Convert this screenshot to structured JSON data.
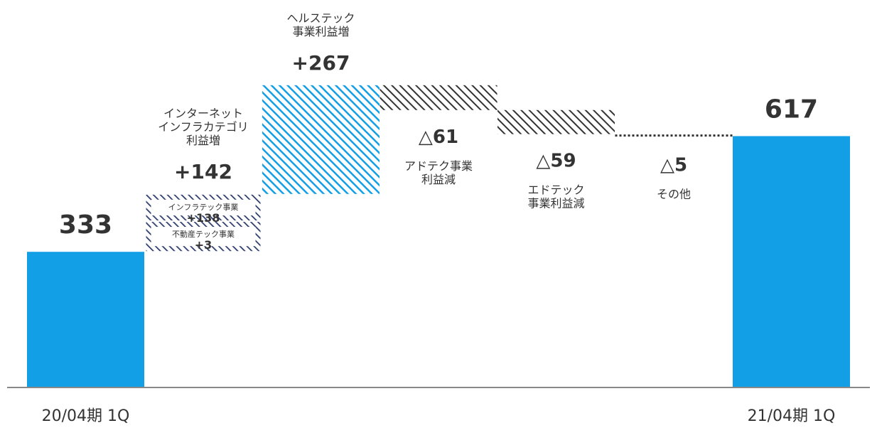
{
  "chart_data": {
    "type": "bar",
    "subtype": "waterfall",
    "colors": {
      "total": "#139fe6",
      "increase_health": "#139fe6",
      "increase_infra": "#2b3a6b",
      "decrease": "#333333",
      "axis": "#888888",
      "text": "#333333"
    },
    "categories": [
      "20/04期 1Q",
      "",
      "",
      "",
      "",
      "",
      "21/04期 1Q"
    ],
    "steps": [
      {
        "kind": "total",
        "value": 333,
        "value_label": "333",
        "label_lines": []
      },
      {
        "kind": "increase",
        "value": 142,
        "value_label": "+142",
        "label_lines": [
          "インターネット",
          "インフラカテゴリ",
          "利益増"
        ],
        "breakdown": [
          {
            "label": "インフラテック事業",
            "value": 138,
            "value_label": "+138"
          },
          {
            "label": "不動産テック事業",
            "value": 3,
            "value_label": "+3"
          }
        ]
      },
      {
        "kind": "increase",
        "value": 267,
        "value_label": "+267",
        "label_lines": [
          "ヘルステック",
          "事業利益増"
        ]
      },
      {
        "kind": "decrease",
        "value": -61,
        "value_label": "△61",
        "label_lines": [
          "アドテク事業",
          "利益減"
        ]
      },
      {
        "kind": "decrease",
        "value": -59,
        "value_label": "△59",
        "label_lines": [
          "エドテック",
          "事業利益減"
        ]
      },
      {
        "kind": "decrease",
        "value": -5,
        "value_label": "△5",
        "label_lines": [
          "その他"
        ]
      },
      {
        "kind": "total",
        "value": 617,
        "value_label": "617",
        "label_lines": []
      }
    ],
    "ylim": [
      0,
      750
    ],
    "grid": false,
    "legend": "none"
  }
}
